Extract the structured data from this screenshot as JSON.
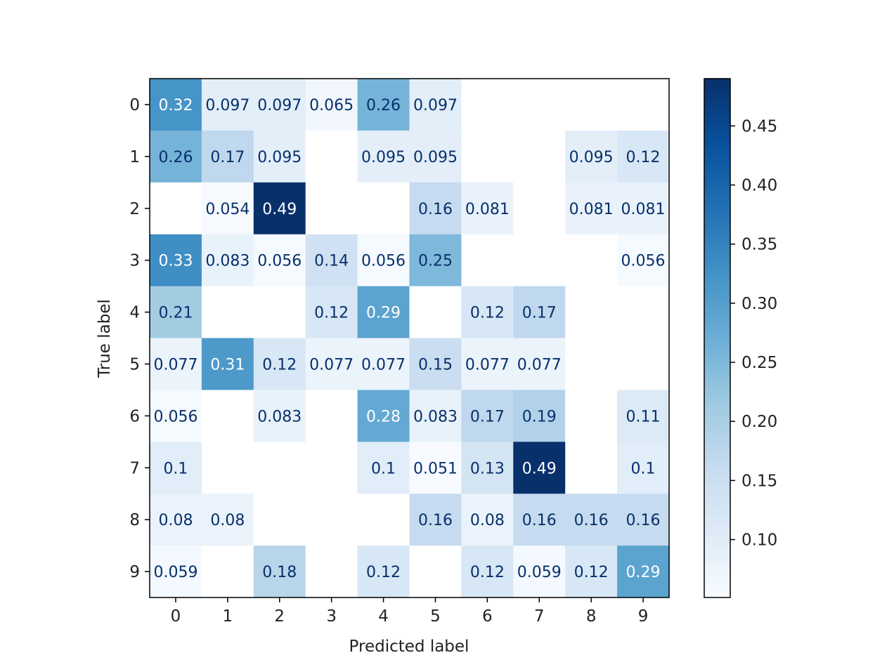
{
  "chart_data": {
    "type": "heatmap",
    "title": "",
    "xlabel": "Predicted label",
    "ylabel": "True label",
    "x_categories": [
      "0",
      "1",
      "2",
      "3",
      "4",
      "5",
      "6",
      "7",
      "8",
      "9"
    ],
    "y_categories": [
      "0",
      "1",
      "2",
      "3",
      "4",
      "5",
      "6",
      "7",
      "8",
      "9"
    ],
    "colormap": "Blues",
    "color_range": [
      0.051,
      0.49
    ],
    "matrix": [
      [
        "0.32",
        "0.097",
        "0.097",
        "0.065",
        "0.26",
        "0.097",
        "",
        "",
        "",
        ""
      ],
      [
        "0.26",
        "0.17",
        "0.095",
        "",
        "0.095",
        "0.095",
        "",
        "",
        "0.095",
        "0.12"
      ],
      [
        "",
        "0.054",
        "0.49",
        "",
        "",
        "0.16",
        "0.081",
        "",
        "0.081",
        "0.081"
      ],
      [
        "0.33",
        "0.083",
        "0.056",
        "0.14",
        "0.056",
        "0.25",
        "",
        "",
        "",
        "0.056"
      ],
      [
        "0.21",
        "",
        "",
        "0.12",
        "0.29",
        "",
        "0.12",
        "0.17",
        "",
        ""
      ],
      [
        "0.077",
        "0.31",
        "0.12",
        "0.077",
        "0.077",
        "0.15",
        "0.077",
        "0.077",
        "",
        ""
      ],
      [
        "0.056",
        "",
        "0.083",
        "",
        "0.28",
        "0.083",
        "0.17",
        "0.19",
        "",
        "0.11"
      ],
      [
        "0.1",
        "",
        "",
        "",
        "0.1",
        "0.051",
        "0.13",
        "0.49",
        "",
        "0.1"
      ],
      [
        "0.08",
        "0.08",
        "",
        "",
        "",
        "0.16",
        "0.08",
        "0.16",
        "0.16",
        "0.16"
      ],
      [
        "0.059",
        "",
        "0.18",
        "",
        "0.12",
        "",
        "0.12",
        "0.059",
        "0.12",
        "0.29"
      ]
    ],
    "colorbar": {
      "ticks": [
        0.1,
        0.15,
        0.2,
        0.25,
        0.3,
        0.35,
        0.4,
        0.45
      ],
      "tick_labels": [
        "0.10",
        "0.15",
        "0.20",
        "0.25",
        "0.30",
        "0.35",
        "0.40",
        "0.45"
      ]
    }
  }
}
